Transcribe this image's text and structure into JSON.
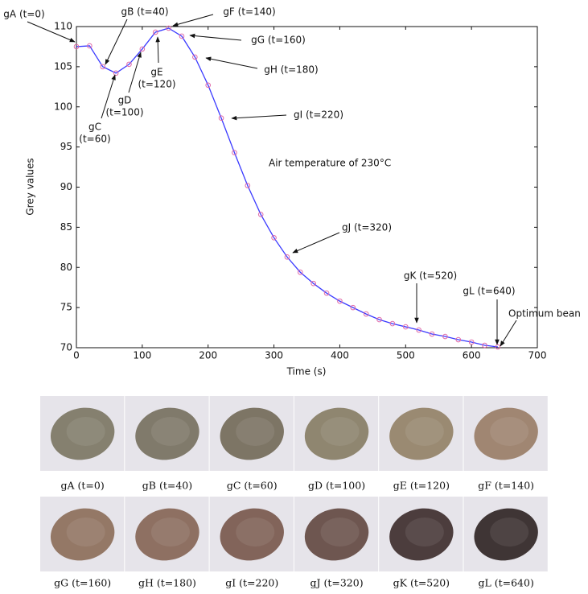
{
  "chart_data": {
    "type": "line",
    "x_label": "Time (s)",
    "y_label": "Grey values",
    "x": [
      0,
      20,
      40,
      60,
      80,
      100,
      120,
      140,
      160,
      180,
      200,
      220,
      240,
      260,
      280,
      300,
      320,
      340,
      360,
      380,
      400,
      420,
      440,
      460,
      480,
      500,
      520,
      540,
      560,
      580,
      600,
      620,
      640
    ],
    "series": [
      {
        "color": "#3a3aff",
        "marker_color": "#e06aa8",
        "values": [
          107.5,
          107.6,
          105,
          104.2,
          105.3,
          107.2,
          109.3,
          109.8,
          108.8,
          106.2,
          102.7,
          98.6,
          94.3,
          90.2,
          86.6,
          83.7,
          81.3,
          79.4,
          78,
          76.8,
          75.8,
          75,
          74.2,
          73.5,
          73,
          72.6,
          72.2,
          71.7,
          71.4,
          71,
          70.7,
          70.3,
          70.1
        ]
      }
    ],
    "xlim": [
      0,
      700
    ],
    "xticks": [
      0,
      100,
      200,
      300,
      400,
      500,
      600,
      700
    ],
    "ylim": [
      70,
      110
    ],
    "yticks": [
      70,
      75,
      80,
      85,
      90,
      95,
      100,
      105,
      110
    ],
    "annotations": [
      {
        "text": [
          "gA (t=0)"
        ]
      },
      {
        "text": [
          "gB (t=40)"
        ]
      },
      {
        "text": [
          "gC",
          "(t=60)"
        ]
      },
      {
        "text": [
          "gD",
          "(t=100)"
        ]
      },
      {
        "text": [
          "gE",
          "(t=120)"
        ]
      },
      {
        "text": [
          "gF (t=140)"
        ]
      },
      {
        "text": [
          "gG (t=160)"
        ]
      },
      {
        "text": [
          "gH (t=180)"
        ]
      },
      {
        "text": [
          "gI (t=220)"
        ]
      },
      {
        "text": [
          "gJ (t=320)"
        ]
      },
      {
        "text": [
          "gK (t=520)"
        ]
      },
      {
        "text": [
          "gL (t=640)"
        ]
      },
      {
        "text": [
          "Optimum bean"
        ]
      },
      {
        "text": [
          "Air temperature of 230°C"
        ]
      }
    ]
  },
  "photos": [
    {
      "caption": "gA (t=0)"
    },
    {
      "caption": "gB (t=40)"
    },
    {
      "caption": "gC (t=60)"
    },
    {
      "caption": "gD (t=100)"
    },
    {
      "caption": "gE (t=120)"
    },
    {
      "caption": "gF (t=140)"
    },
    {
      "caption": "gG (t=160)"
    },
    {
      "caption": "gH (t=180)"
    },
    {
      "caption": "gI (t=220)"
    },
    {
      "caption": "gJ (t=320)"
    },
    {
      "caption": "gK (t=520)"
    },
    {
      "caption": "gL (t=640)"
    }
  ]
}
